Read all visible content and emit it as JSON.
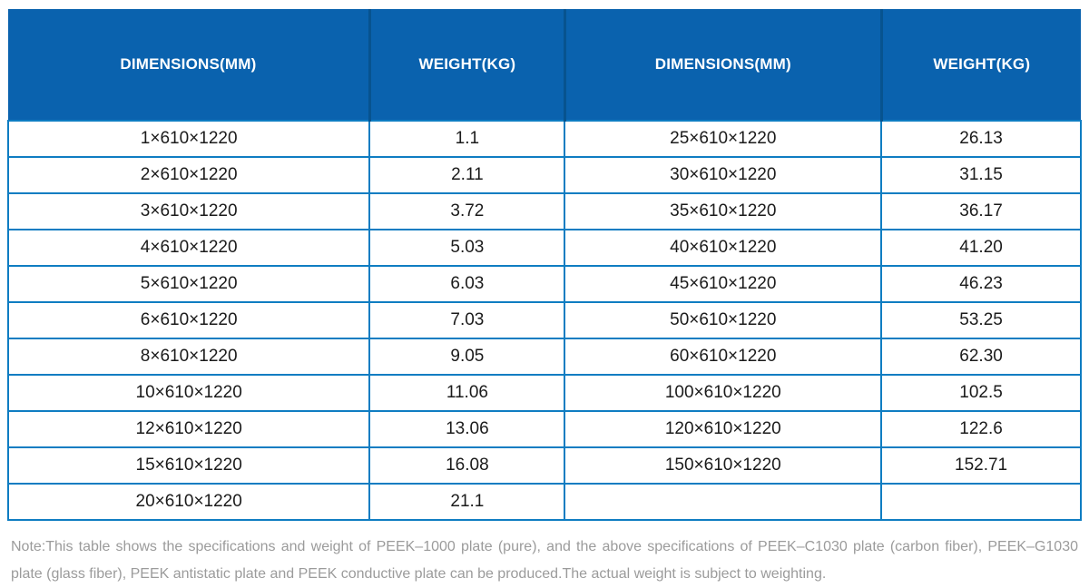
{
  "table": {
    "columns": [
      "DIMENSIONS(MM)",
      "WEIGHT(KG)",
      "DIMENSIONS(MM)",
      "WEIGHT(KG)"
    ],
    "rows": [
      [
        "1×610×1220",
        "1.1",
        "25×610×1220",
        "26.13"
      ],
      [
        "2×610×1220",
        "2.11",
        "30×610×1220",
        "31.15"
      ],
      [
        "3×610×1220",
        "3.72",
        "35×610×1220",
        "36.17"
      ],
      [
        "4×610×1220",
        "5.03",
        "40×610×1220",
        "41.20"
      ],
      [
        "5×610×1220",
        "6.03",
        "45×610×1220",
        "46.23"
      ],
      [
        "6×610×1220",
        "7.03",
        "50×610×1220",
        "53.25"
      ],
      [
        "8×610×1220",
        "9.05",
        "60×610×1220",
        "62.30"
      ],
      [
        "10×610×1220",
        "11.06",
        "100×610×1220",
        "102.5"
      ],
      [
        "12×610×1220",
        "13.06",
        "120×610×1220",
        "122.6"
      ],
      [
        "15×610×1220",
        "16.08",
        "150×610×1220",
        "152.71"
      ],
      [
        "20×610×1220",
        "21.1",
        "",
        ""
      ]
    ]
  },
  "note": "Note:This table shows the specifications and weight of PEEK–1000 plate (pure), and the above specifications of PEEK–C1030 plate (carbon fiber), PEEK–G1030 plate (glass fiber), PEEK antistatic plate and PEEK conductive plate can be produced.The actual weight is subject to weighting.",
  "colors": {
    "header_bg": "#0a62ae",
    "header_divider": "#07538f",
    "cell_border": "#0f7dc2",
    "header_text": "#ffffff",
    "body_text": "#1b1b1b",
    "note_text": "#9b9b9b"
  }
}
